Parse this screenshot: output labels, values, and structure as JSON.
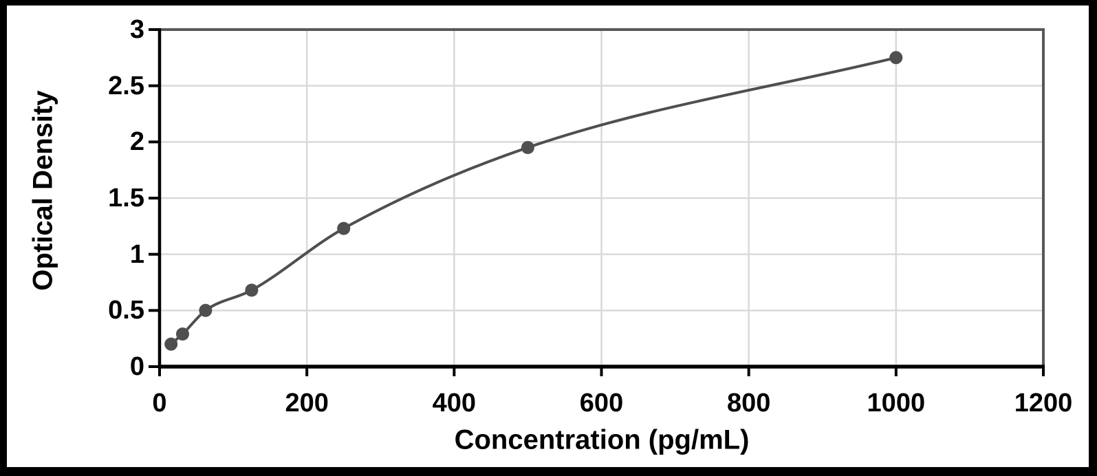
{
  "figure": {
    "background_color": "#ffffff",
    "frame_color": "#000000"
  },
  "chart_data": {
    "type": "scatter",
    "title": "",
    "xlabel": "Concentration (pg/mL)",
    "ylabel": "Optical Density",
    "x": [
      15.6,
      31.25,
      62.5,
      125,
      250,
      500,
      1000
    ],
    "y": [
      0.2,
      0.29,
      0.5,
      0.68,
      1.23,
      1.95,
      2.75
    ],
    "trendline": "smooth saturating fit through all points",
    "xlim": [
      0,
      1200
    ],
    "ylim": [
      0,
      3
    ],
    "x_ticks": [
      0,
      200,
      400,
      600,
      800,
      1000,
      1200
    ],
    "y_ticks": [
      0,
      0.5,
      1,
      1.5,
      2,
      2.5,
      3
    ],
    "grid": true,
    "legend": false,
    "marker_color": "#4f4f4f",
    "line_color": "#4f4f4f",
    "grid_color": "#d9d9d9",
    "axis_color": "#000000",
    "plot_border_color": "#595959"
  }
}
